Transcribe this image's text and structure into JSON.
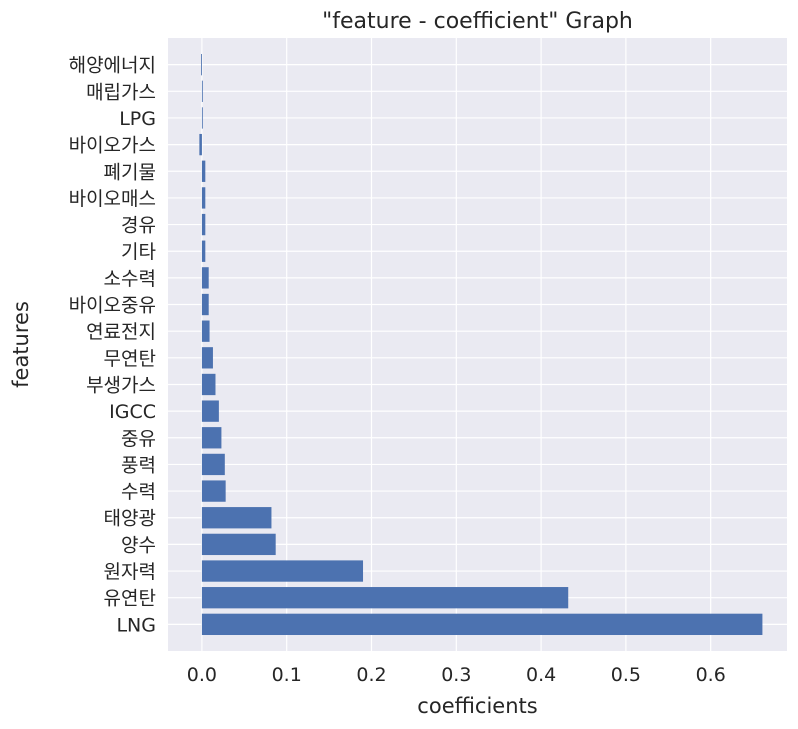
{
  "chart_data": {
    "type": "bar",
    "orientation": "horizontal",
    "title": "\"feature - coefficient\" Graph",
    "xlabel": "coefficients",
    "ylabel": "features",
    "xlim": [
      -0.04,
      0.69
    ],
    "xticks": [
      0.0,
      0.1,
      0.2,
      0.3,
      0.4,
      0.5,
      0.6
    ],
    "xtick_labels": [
      "0.0",
      "0.1",
      "0.2",
      "0.3",
      "0.4",
      "0.5",
      "0.6"
    ],
    "grid": true,
    "background": "#eaeaf2",
    "bar_color": "#4c72b0",
    "categories": [
      "LNG",
      "유연탄",
      "원자력",
      "양수",
      "태양광",
      "수력",
      "풍력",
      "중유",
      "IGCC",
      "부생가스",
      "무연탄",
      "연료전지",
      "바이오중유",
      "소수력",
      "기타",
      "경유",
      "바이오매스",
      "폐기물",
      "바이오가스",
      "LPG",
      "매립가스",
      "해양에너지"
    ],
    "values": [
      0.661,
      0.432,
      0.19,
      0.087,
      0.082,
      0.028,
      0.027,
      0.023,
      0.02,
      0.016,
      0.013,
      0.009,
      0.008,
      0.008,
      0.004,
      0.004,
      0.004,
      0.004,
      -0.003,
      0.001,
      0.001,
      -0.001
    ]
  }
}
